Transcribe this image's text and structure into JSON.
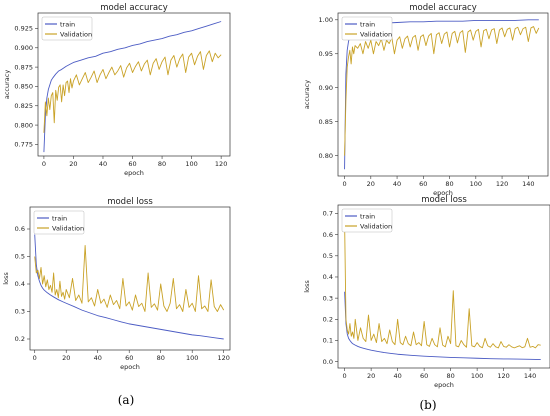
{
  "panels": [
    {
      "label": "(a)"
    },
    {
      "label": "(b)"
    }
  ],
  "chart_data": [
    {
      "type": "line",
      "title": "model accuracy",
      "xlabel": "epoch",
      "ylabel": "accuracy",
      "xlim": [
        -4,
        126
      ],
      "ylim": [
        0.76,
        0.945
      ],
      "xticks": [
        0,
        20,
        40,
        60,
        80,
        100,
        120
      ],
      "yticks": [
        0.775,
        0.8,
        0.825,
        0.85,
        0.875,
        0.9,
        0.925
      ],
      "ytick_labels": [
        "0.775",
        "0.800",
        "0.825",
        "0.850",
        "0.875",
        "0.900",
        "0.925"
      ],
      "legend": "top-left",
      "series": [
        {
          "name": "train",
          "color": "#4c5cc4",
          "x": [
            0,
            1,
            2,
            3,
            4,
            5,
            6,
            8,
            10,
            12,
            15,
            18,
            20,
            25,
            30,
            35,
            40,
            45,
            50,
            55,
            60,
            65,
            70,
            75,
            80,
            85,
            90,
            95,
            100,
            105,
            110,
            115,
            120
          ],
          "y": [
            0.765,
            0.812,
            0.835,
            0.846,
            0.852,
            0.858,
            0.861,
            0.866,
            0.87,
            0.872,
            0.876,
            0.879,
            0.881,
            0.884,
            0.887,
            0.889,
            0.893,
            0.895,
            0.898,
            0.9,
            0.903,
            0.905,
            0.908,
            0.91,
            0.912,
            0.915,
            0.917,
            0.92,
            0.922,
            0.925,
            0.928,
            0.931,
            0.934
          ]
        },
        {
          "name": "Validation",
          "color": "#c9a227",
          "x": [
            0,
            1,
            2,
            3,
            4,
            5,
            6,
            7,
            8,
            9,
            10,
            11,
            12,
            13,
            14,
            15,
            16,
            17,
            18,
            19,
            20,
            22,
            24,
            26,
            28,
            30,
            32,
            34,
            36,
            38,
            40,
            42,
            44,
            46,
            48,
            50,
            52,
            54,
            56,
            58,
            60,
            62,
            64,
            66,
            68,
            70,
            72,
            74,
            76,
            78,
            80,
            82,
            84,
            86,
            88,
            90,
            92,
            94,
            96,
            98,
            100,
            102,
            104,
            106,
            108,
            110,
            112,
            114,
            116,
            118,
            120
          ],
          "y": [
            0.79,
            0.83,
            0.812,
            0.835,
            0.82,
            0.838,
            0.842,
            0.803,
            0.845,
            0.832,
            0.849,
            0.852,
            0.83,
            0.852,
            0.838,
            0.855,
            0.857,
            0.842,
            0.86,
            0.848,
            0.857,
            0.865,
            0.852,
            0.86,
            0.868,
            0.855,
            0.862,
            0.87,
            0.855,
            0.865,
            0.872,
            0.86,
            0.868,
            0.875,
            0.865,
            0.87,
            0.877,
            0.862,
            0.874,
            0.88,
            0.868,
            0.876,
            0.882,
            0.87,
            0.879,
            0.884,
            0.865,
            0.88,
            0.886,
            0.872,
            0.882,
            0.888,
            0.865,
            0.884,
            0.89,
            0.875,
            0.886,
            0.892,
            0.868,
            0.888,
            0.893,
            0.878,
            0.889,
            0.895,
            0.872,
            0.89,
            0.896,
            0.882,
            0.893,
            0.887,
            0.891
          ]
        }
      ]
    },
    {
      "type": "line",
      "title": "model accuracy",
      "xlabel": "epoch",
      "ylabel": "accuracy",
      "xlim": [
        -5,
        155
      ],
      "ylim": [
        0.77,
        1.01
      ],
      "xticks": [
        0,
        20,
        40,
        60,
        80,
        100,
        120,
        140
      ],
      "yticks": [
        0.8,
        0.85,
        0.9,
        0.95,
        1.0
      ],
      "ytick_labels": [
        "0.80",
        "0.85",
        "0.90",
        "0.95",
        "1.00"
      ],
      "legend": "top-left",
      "series": [
        {
          "name": "train",
          "color": "#4c5cc4",
          "x": [
            0,
            1,
            2,
            3,
            4,
            5,
            6,
            8,
            10,
            12,
            15,
            20,
            25,
            30,
            40,
            50,
            60,
            70,
            80,
            90,
            100,
            110,
            120,
            130,
            140,
            148
          ],
          "y": [
            0.78,
            0.92,
            0.955,
            0.968,
            0.975,
            0.98,
            0.984,
            0.987,
            0.989,
            0.99,
            0.992,
            0.993,
            0.994,
            0.995,
            0.996,
            0.997,
            0.997,
            0.998,
            0.998,
            0.998,
            0.999,
            0.999,
            0.999,
            0.999,
            1.0,
            1.0
          ]
        },
        {
          "name": "Validation",
          "color": "#c9a227",
          "x": [
            0,
            1,
            2,
            3,
            4,
            5,
            6,
            7,
            8,
            10,
            12,
            14,
            16,
            18,
            20,
            22,
            24,
            26,
            28,
            30,
            32,
            34,
            36,
            38,
            40,
            42,
            44,
            46,
            48,
            50,
            52,
            54,
            56,
            58,
            60,
            62,
            64,
            66,
            68,
            70,
            72,
            74,
            76,
            78,
            80,
            82,
            84,
            86,
            88,
            90,
            92,
            94,
            96,
            98,
            100,
            102,
            104,
            106,
            108,
            110,
            112,
            114,
            116,
            118,
            120,
            122,
            124,
            126,
            128,
            130,
            132,
            134,
            136,
            138,
            140,
            142,
            144,
            146,
            148
          ],
          "y": [
            0.8,
            0.88,
            0.93,
            0.945,
            0.955,
            0.935,
            0.96,
            0.95,
            0.962,
            0.958,
            0.965,
            0.95,
            0.968,
            0.958,
            0.97,
            0.95,
            0.968,
            0.962,
            0.972,
            0.955,
            0.97,
            0.965,
            0.974,
            0.95,
            0.97,
            0.975,
            0.958,
            0.972,
            0.976,
            0.96,
            0.974,
            0.977,
            0.955,
            0.975,
            0.978,
            0.962,
            0.976,
            0.98,
            0.95,
            0.978,
            0.981,
            0.965,
            0.979,
            0.982,
            0.96,
            0.98,
            0.983,
            0.966,
            0.981,
            0.984,
            0.952,
            0.982,
            0.985,
            0.97,
            0.983,
            0.986,
            0.96,
            0.984,
            0.986,
            0.972,
            0.985,
            0.987,
            0.965,
            0.985,
            0.988,
            0.975,
            0.986,
            0.988,
            0.97,
            0.987,
            0.989,
            0.978,
            0.987,
            0.989,
            0.968,
            0.988,
            0.99,
            0.98,
            0.988
          ]
        }
      ]
    },
    {
      "type": "line",
      "title": "model loss",
      "xlabel": "epoch",
      "ylabel": "loss",
      "xlim": [
        -3,
        124
      ],
      "ylim": [
        0.16,
        0.68
      ],
      "xticks": [
        0,
        20,
        40,
        60,
        80,
        100,
        120
      ],
      "yticks": [
        0.2,
        0.3,
        0.4,
        0.5,
        0.6
      ],
      "ytick_labels": [
        "0.2",
        "0.3",
        "0.4",
        "0.5",
        "0.6"
      ],
      "legend": "top-left",
      "series": [
        {
          "name": "train",
          "color": "#4c5cc4",
          "x": [
            0,
            1,
            2,
            3,
            4,
            5,
            6,
            8,
            10,
            12,
            15,
            18,
            20,
            25,
            30,
            35,
            40,
            45,
            50,
            55,
            60,
            65,
            70,
            75,
            80,
            85,
            90,
            95,
            100,
            105,
            110,
            115,
            120
          ],
          "y": [
            0.58,
            0.47,
            0.43,
            0.41,
            0.395,
            0.385,
            0.378,
            0.368,
            0.36,
            0.353,
            0.343,
            0.335,
            0.33,
            0.318,
            0.305,
            0.295,
            0.285,
            0.278,
            0.27,
            0.262,
            0.255,
            0.25,
            0.245,
            0.24,
            0.235,
            0.23,
            0.225,
            0.22,
            0.215,
            0.212,
            0.208,
            0.204,
            0.2
          ]
        },
        {
          "name": "Validation",
          "color": "#c9a227",
          "x": [
            0,
            1,
            2,
            3,
            4,
            5,
            6,
            7,
            8,
            9,
            10,
            11,
            12,
            13,
            14,
            15,
            16,
            17,
            18,
            19,
            20,
            22,
            24,
            26,
            28,
            30,
            32,
            34,
            36,
            38,
            40,
            42,
            44,
            46,
            48,
            50,
            52,
            54,
            56,
            58,
            60,
            62,
            64,
            66,
            68,
            70,
            72,
            74,
            76,
            78,
            80,
            82,
            84,
            86,
            88,
            90,
            92,
            94,
            96,
            98,
            100,
            102,
            104,
            106,
            108,
            110,
            112,
            114,
            116,
            118,
            120
          ],
          "y": [
            0.5,
            0.44,
            0.45,
            0.42,
            0.46,
            0.4,
            0.43,
            0.39,
            0.415,
            0.38,
            0.395,
            0.37,
            0.44,
            0.36,
            0.38,
            0.35,
            0.41,
            0.355,
            0.37,
            0.345,
            0.38,
            0.35,
            0.42,
            0.34,
            0.36,
            0.33,
            0.54,
            0.335,
            0.35,
            0.32,
            0.38,
            0.33,
            0.345,
            0.315,
            0.36,
            0.325,
            0.34,
            0.31,
            0.42,
            0.32,
            0.335,
            0.305,
            0.36,
            0.318,
            0.33,
            0.3,
            0.44,
            0.315,
            0.328,
            0.305,
            0.4,
            0.32,
            0.3,
            0.33,
            0.42,
            0.31,
            0.325,
            0.3,
            0.38,
            0.315,
            0.33,
            0.3,
            0.43,
            0.31,
            0.32,
            0.3,
            0.415,
            0.318,
            0.3,
            0.325,
            0.305
          ]
        }
      ]
    },
    {
      "type": "line",
      "title": "model loss",
      "xlabel": "epoch",
      "ylabel": "loss",
      "xlim": [
        -5,
        155
      ],
      "ylim": [
        -0.03,
        0.74
      ],
      "xticks": [
        0,
        20,
        40,
        60,
        80,
        100,
        120,
        140
      ],
      "yticks": [
        0.0,
        0.1,
        0.2,
        0.3,
        0.4,
        0.5,
        0.6,
        0.7
      ],
      "ytick_labels": [
        "0.0",
        "0.1",
        "0.2",
        "0.3",
        "0.4",
        "0.5",
        "0.6",
        "0.7"
      ],
      "legend": "top-left",
      "series": [
        {
          "name": "train",
          "color": "#4c5cc4",
          "x": [
            0,
            1,
            2,
            3,
            4,
            5,
            6,
            8,
            10,
            12,
            15,
            18,
            20,
            25,
            30,
            35,
            40,
            50,
            60,
            70,
            80,
            90,
            100,
            110,
            120,
            130,
            140,
            148
          ],
          "y": [
            0.33,
            0.18,
            0.13,
            0.11,
            0.1,
            0.092,
            0.085,
            0.078,
            0.072,
            0.067,
            0.062,
            0.057,
            0.054,
            0.048,
            0.043,
            0.039,
            0.035,
            0.03,
            0.026,
            0.023,
            0.02,
            0.018,
            0.016,
            0.014,
            0.013,
            0.012,
            0.011,
            0.01
          ]
        },
        {
          "name": "Validation",
          "color": "#c9a227",
          "x": [
            0,
            1,
            2,
            3,
            4,
            5,
            6,
            7,
            8,
            10,
            12,
            14,
            16,
            18,
            20,
            22,
            24,
            26,
            28,
            30,
            32,
            34,
            36,
            38,
            40,
            42,
            44,
            46,
            48,
            50,
            52,
            54,
            56,
            58,
            60,
            62,
            64,
            66,
            68,
            70,
            72,
            74,
            76,
            78,
            80,
            82,
            84,
            86,
            88,
            90,
            92,
            94,
            96,
            98,
            100,
            102,
            104,
            106,
            108,
            110,
            112,
            114,
            116,
            118,
            120,
            122,
            124,
            126,
            128,
            130,
            132,
            134,
            136,
            138,
            140,
            142,
            144,
            146,
            148
          ],
          "y": [
            0.65,
            0.2,
            0.15,
            0.13,
            0.18,
            0.12,
            0.14,
            0.11,
            0.2,
            0.1,
            0.16,
            0.11,
            0.095,
            0.22,
            0.1,
            0.13,
            0.09,
            0.18,
            0.095,
            0.11,
            0.085,
            0.15,
            0.095,
            0.08,
            0.2,
            0.09,
            0.08,
            0.12,
            0.085,
            0.075,
            0.14,
            0.08,
            0.09,
            0.075,
            0.19,
            0.08,
            0.072,
            0.11,
            0.08,
            0.07,
            0.16,
            0.078,
            0.07,
            0.12,
            0.085,
            0.335,
            0.075,
            0.07,
            0.1,
            0.08,
            0.068,
            0.25,
            0.075,
            0.07,
            0.09,
            0.072,
            0.066,
            0.11,
            0.075,
            0.068,
            0.085,
            0.07,
            0.065,
            0.095,
            0.072,
            0.068,
            0.08,
            0.07,
            0.065,
            0.07,
            0.075,
            0.066,
            0.07,
            0.11,
            0.068,
            0.072,
            0.065,
            0.08,
            0.078
          ]
        }
      ]
    }
  ]
}
